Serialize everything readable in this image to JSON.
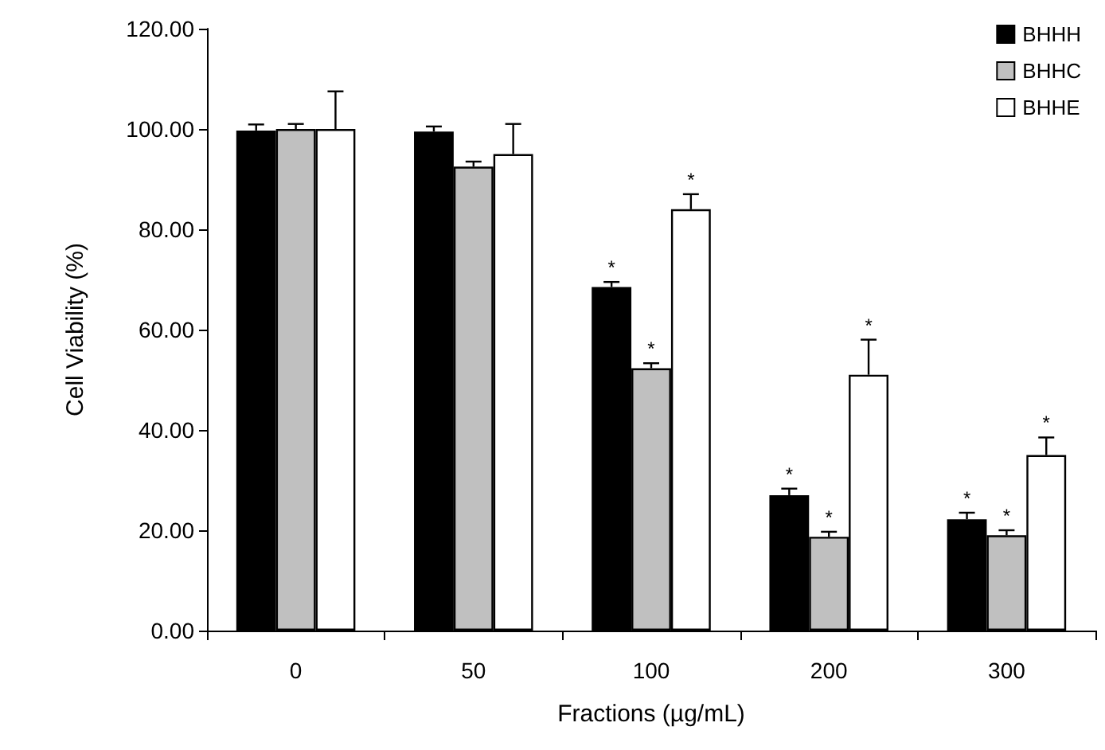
{
  "chart_data": {
    "type": "bar",
    "xlabel": "Fractions (µg/mL)",
    "ylabel": "Cell Viability (%)",
    "categories": [
      "0",
      "50",
      "100",
      "200",
      "300"
    ],
    "series": [
      {
        "name": "BHHH",
        "color": "#000000",
        "values": [
          99.7,
          99.5,
          68.5,
          27,
          22.2
        ],
        "errors": [
          1.2,
          1,
          1,
          1.3,
          1.3
        ],
        "value_labels": [
          null,
          null,
          "*",
          "*",
          "*"
        ]
      },
      {
        "name": "BHHC",
        "color": "#c0c0c0",
        "values": [
          100,
          92.5,
          52.3,
          18.7,
          19
        ],
        "errors": [
          1,
          1,
          1,
          1,
          1
        ],
        "value_labels": [
          null,
          null,
          "*",
          "*",
          "*"
        ]
      },
      {
        "name": "BHHE",
        "color": "#ffffff",
        "values": [
          100,
          95,
          84,
          51,
          35
        ],
        "errors": [
          7.5,
          6,
          3,
          7,
          3.5
        ],
        "value_labels": [
          null,
          null,
          "*",
          "*",
          "*"
        ]
      }
    ],
    "ylim": [
      0,
      120
    ],
    "yticks": [
      {
        "value": 0,
        "label": "0.00"
      },
      {
        "value": 20,
        "label": "20.00"
      },
      {
        "value": 40,
        "label": "40.00"
      },
      {
        "value": 60,
        "label": "60.00"
      },
      {
        "value": 80,
        "label": "80.00"
      },
      {
        "value": 100,
        "label": "100.00"
      },
      {
        "value": 120,
        "label": "120.00"
      }
    ],
    "grid": false,
    "legend": "top right"
  }
}
